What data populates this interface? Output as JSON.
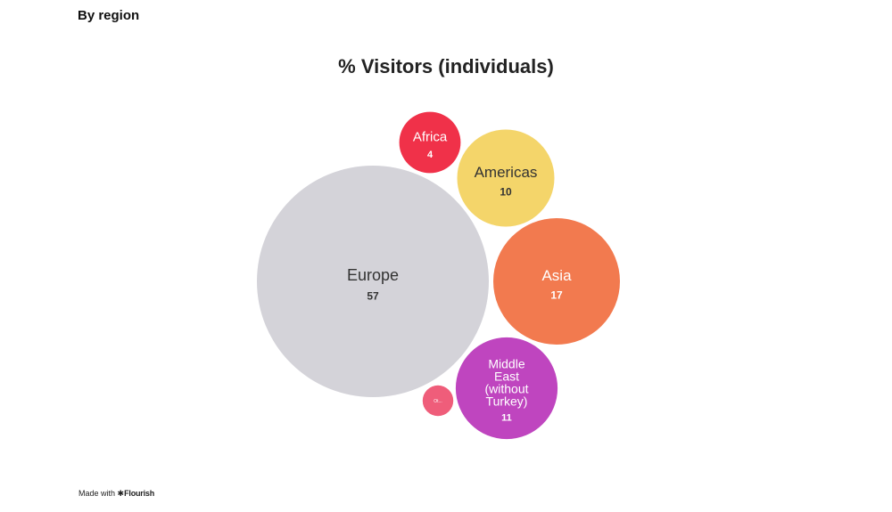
{
  "header": {
    "label": "By region"
  },
  "chart_data": {
    "type": "bubble",
    "title": "% Visitors (individuals)",
    "series": [
      {
        "name": "Europe",
        "display_label": "Europe",
        "value": 57,
        "value_label": "57",
        "color": "#d4d3d9",
        "text_color": "#333333",
        "value_color": "#333333"
      },
      {
        "name": "Africa",
        "display_label": "Africa",
        "value": 4,
        "value_label": "4",
        "color": "#f03149",
        "text_color": "#ffffff",
        "value_color": "#ffffff"
      },
      {
        "name": "Americas",
        "display_label": "Americas",
        "value": 10,
        "value_label": "10",
        "color": "#f4d56a",
        "text_color": "#333333",
        "value_color": "#333333"
      },
      {
        "name": "Asia",
        "display_label": "Asia",
        "value": 17,
        "value_label": "17",
        "color": "#f27a4f",
        "text_color": "#ffffff",
        "value_color": "#ffffff"
      },
      {
        "name": "Middle East (without Turkey)",
        "display_label": "Middle East (without Turkey)",
        "value": 11,
        "value_label": "11",
        "color": "#bf45bf",
        "text_color": "#ffffff",
        "value_color": "#ffffff"
      },
      {
        "name": "Other",
        "display_label": "Ot...",
        "value": 1,
        "value_label": "",
        "color": "#ef5d7a",
        "text_color": "#ffffff",
        "value_color": "#ffffff"
      }
    ]
  },
  "footer": {
    "made_with": "Made with",
    "star": "✱",
    "brand": "Flourish"
  }
}
